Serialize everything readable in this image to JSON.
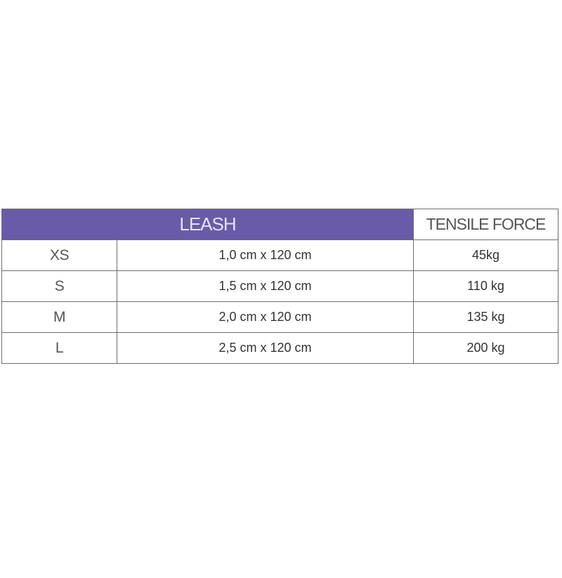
{
  "table": {
    "header": {
      "leash": "LEASH",
      "force": "TENSILE FORCE"
    },
    "header_color": "#6a5ba8",
    "rows": [
      {
        "size": "XS",
        "dimensions": "1,0 cm x 120 cm",
        "force": "45kg"
      },
      {
        "size": "S",
        "dimensions": "1,5 cm x 120 cm",
        "force": "110 kg"
      },
      {
        "size": "M",
        "dimensions": "2,0 cm x 120 cm",
        "force": "135 kg"
      },
      {
        "size": "L",
        "dimensions": "2,5 cm x 120 cm",
        "force": "200 kg"
      }
    ]
  }
}
